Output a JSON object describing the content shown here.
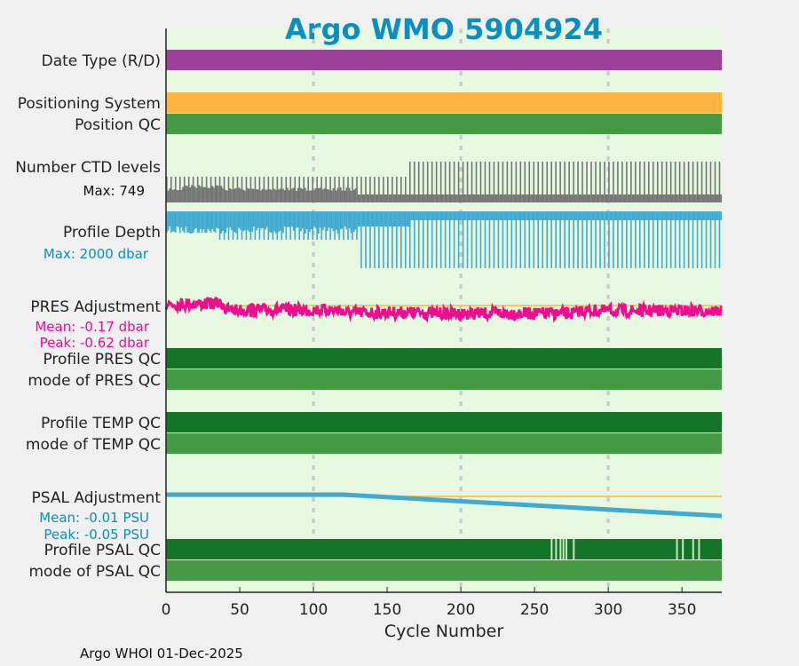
{
  "chart_data": {
    "type": "table",
    "title": "Argo WMO 5904924",
    "xlabel": "Cycle Number",
    "xlim": [
      0,
      377
    ],
    "xticks": [
      0,
      50,
      100,
      150,
      200,
      250,
      300,
      350
    ],
    "grid_x": [
      100,
      200,
      300
    ],
    "footer": "Argo WHOI 01-Dec-2025",
    "colors": {
      "title": "#0a8fc0",
      "bg": "#e6f9e0",
      "purple": "#9b3f98",
      "orange": "#fdb441",
      "qc_good": "#469a46",
      "qc_dark": "#147529",
      "gray": "#757575",
      "blue": "#42a9d0",
      "magenta": "#ee0d8e",
      "stripe": "#c8e6c0"
    },
    "rows": [
      {
        "label": "Date Type (R/D)",
        "type": "band",
        "color": "purple"
      },
      {
        "label": "Positioning System",
        "type": "band",
        "color": "orange"
      },
      {
        "label": "Position QC",
        "type": "band",
        "color": "qc_good"
      },
      {
        "label": "Number CTD levels",
        "sub": "Max: 749",
        "type": "ctd",
        "max": 749,
        "change_cycles": [
          130,
          165
        ]
      },
      {
        "label": "Profile Depth",
        "sub": "Max: 2000 dbar",
        "type": "depth",
        "max": 2000
      },
      {
        "label": "PRES Adjustment",
        "sub": [
          "Mean: -0.17 dbar",
          "Peak: -0.62 dbar"
        ],
        "type": "pres",
        "mean": -0.17,
        "peak": -0.62
      },
      {
        "label": "Profile PRES QC",
        "type": "band",
        "color": "qc_dark"
      },
      {
        "label": "mode of PRES QC",
        "type": "band",
        "color": "qc_good"
      },
      {
        "label": "Profile TEMP QC",
        "type": "band",
        "color": "qc_dark"
      },
      {
        "label": "mode of TEMP QC",
        "type": "band",
        "color": "qc_good"
      },
      {
        "label": "PSAL Adjustment",
        "sub": [
          "Mean: -0.01 PSU",
          "Peak: -0.05 PSU"
        ],
        "type": "psal",
        "mean": -0.01,
        "peak": -0.05,
        "flat_until": 120
      },
      {
        "label": "Profile PSAL QC",
        "type": "band",
        "color": "qc_dark",
        "flagged_cycles": [
          261,
          264,
          267,
          269,
          271,
          276,
          346,
          350,
          357,
          361
        ]
      },
      {
        "label": "mode of PSAL QC",
        "type": "band",
        "color": "qc_good"
      }
    ]
  }
}
